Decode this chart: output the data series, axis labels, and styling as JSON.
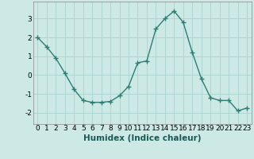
{
  "x": [
    0,
    1,
    2,
    3,
    4,
    5,
    6,
    7,
    8,
    9,
    10,
    11,
    12,
    13,
    14,
    15,
    16,
    17,
    18,
    19,
    20,
    21,
    22,
    23
  ],
  "y": [
    2.0,
    1.5,
    0.9,
    0.1,
    -0.75,
    -1.35,
    -1.45,
    -1.45,
    -1.4,
    -1.1,
    -0.6,
    0.65,
    0.75,
    2.45,
    3.0,
    3.4,
    2.8,
    1.2,
    -0.2,
    -1.2,
    -1.35,
    -1.35,
    -1.9,
    -1.75
  ],
  "line_color": "#2e7d72",
  "marker": "+",
  "bg_color": "#cce9e6",
  "grid_color": "#aad3cf",
  "xlabel": "Humidex (Indice chaleur)",
  "ylim": [
    -2.6,
    3.9
  ],
  "xlim": [
    -0.5,
    23.5
  ],
  "yticks": [
    -2,
    -1,
    0,
    1,
    2,
    3
  ],
  "xticks": [
    0,
    1,
    2,
    3,
    4,
    5,
    6,
    7,
    8,
    9,
    10,
    11,
    12,
    13,
    14,
    15,
    16,
    17,
    18,
    19,
    20,
    21,
    22,
    23
  ],
  "xlabel_fontsize": 7.5,
  "tick_fontsize": 6.5,
  "linewidth": 1.0,
  "markersize": 4,
  "markeredgewidth": 1.0
}
